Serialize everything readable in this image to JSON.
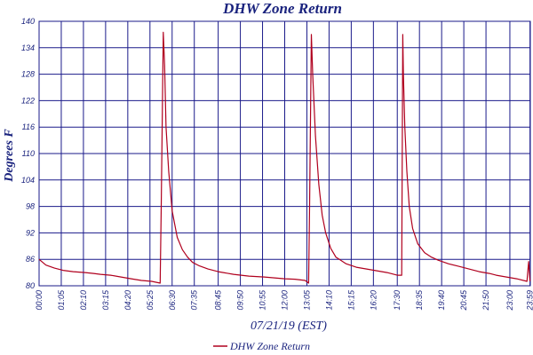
{
  "chart_data": {
    "type": "line",
    "title": "DHW Zone Return",
    "ylabel": "Degrees F",
    "xlabel": "07/21/19 (EST)",
    "ylim": [
      80,
      140
    ],
    "yticks": [
      80,
      86,
      92,
      98,
      104,
      110,
      116,
      122,
      128,
      134,
      140
    ],
    "xlim_minutes": [
      0,
      1440
    ],
    "xtick_labels": [
      "00:00",
      "01:05",
      "02:10",
      "03:15",
      "04:20",
      "05:25",
      "06:30",
      "07:35",
      "08:45",
      "09:50",
      "10:55",
      "12:00",
      "13:05",
      "14:10",
      "15:15",
      "16:20",
      "17:30",
      "18:35",
      "19:40",
      "20:45",
      "21:50",
      "23:00",
      "23:59"
    ],
    "grid": true,
    "legend_position": "bottom-center",
    "colors": {
      "series": "#b0001e",
      "grid": "#1a1a8a",
      "text": "#1a237e"
    },
    "series": [
      {
        "name": "DHW Zone Return",
        "x": [
          "00:00",
          "00:20",
          "00:45",
          "01:10",
          "01:40",
          "02:15",
          "02:40",
          "03:00",
          "03:30",
          "04:00",
          "04:30",
          "05:00",
          "05:30",
          "05:55",
          "05:58",
          "06:04",
          "06:08",
          "06:12",
          "06:20",
          "06:30",
          "06:45",
          "07:00",
          "07:15",
          "07:30",
          "07:50",
          "08:15",
          "08:45",
          "09:30",
          "10:15",
          "11:00",
          "11:30",
          "12:00",
          "12:30",
          "13:00",
          "13:10",
          "13:13",
          "13:18",
          "13:22",
          "13:30",
          "13:40",
          "13:50",
          "14:00",
          "14:15",
          "14:30",
          "15:00",
          "15:30",
          "16:00",
          "16:30",
          "17:00",
          "17:30",
          "17:43",
          "17:46",
          "17:48",
          "17:52",
          "17:58",
          "18:05",
          "18:15",
          "18:30",
          "18:50",
          "19:10",
          "19:30",
          "20:00",
          "20:30",
          "21:00",
          "21:30",
          "22:00",
          "22:20",
          "22:50",
          "23:20",
          "23:50",
          "23:55",
          "23:59"
        ],
        "values": [
          86,
          84.7,
          84,
          83.5,
          83.2,
          83,
          82.8,
          82.6,
          82.4,
          82,
          81.6,
          81.2,
          81,
          80.6,
          98,
          137.5,
          130,
          116,
          106,
          97,
          91,
          88.2,
          86.5,
          85.3,
          84.5,
          83.8,
          83.2,
          82.6,
          82.2,
          82,
          81.8,
          81.6,
          81.5,
          81.2,
          80.6,
          98,
          137,
          128,
          114,
          103,
          96,
          92,
          88.5,
          86.5,
          85,
          84.2,
          83.8,
          83.4,
          83,
          82.4,
          82.4,
          137,
          128,
          116,
          106,
          98,
          93,
          89.5,
          87.5,
          86.5,
          85.8,
          85,
          84.4,
          83.8,
          83.2,
          82.8,
          82.4,
          82,
          81.6,
          81,
          85.5,
          81
        ]
      }
    ]
  }
}
